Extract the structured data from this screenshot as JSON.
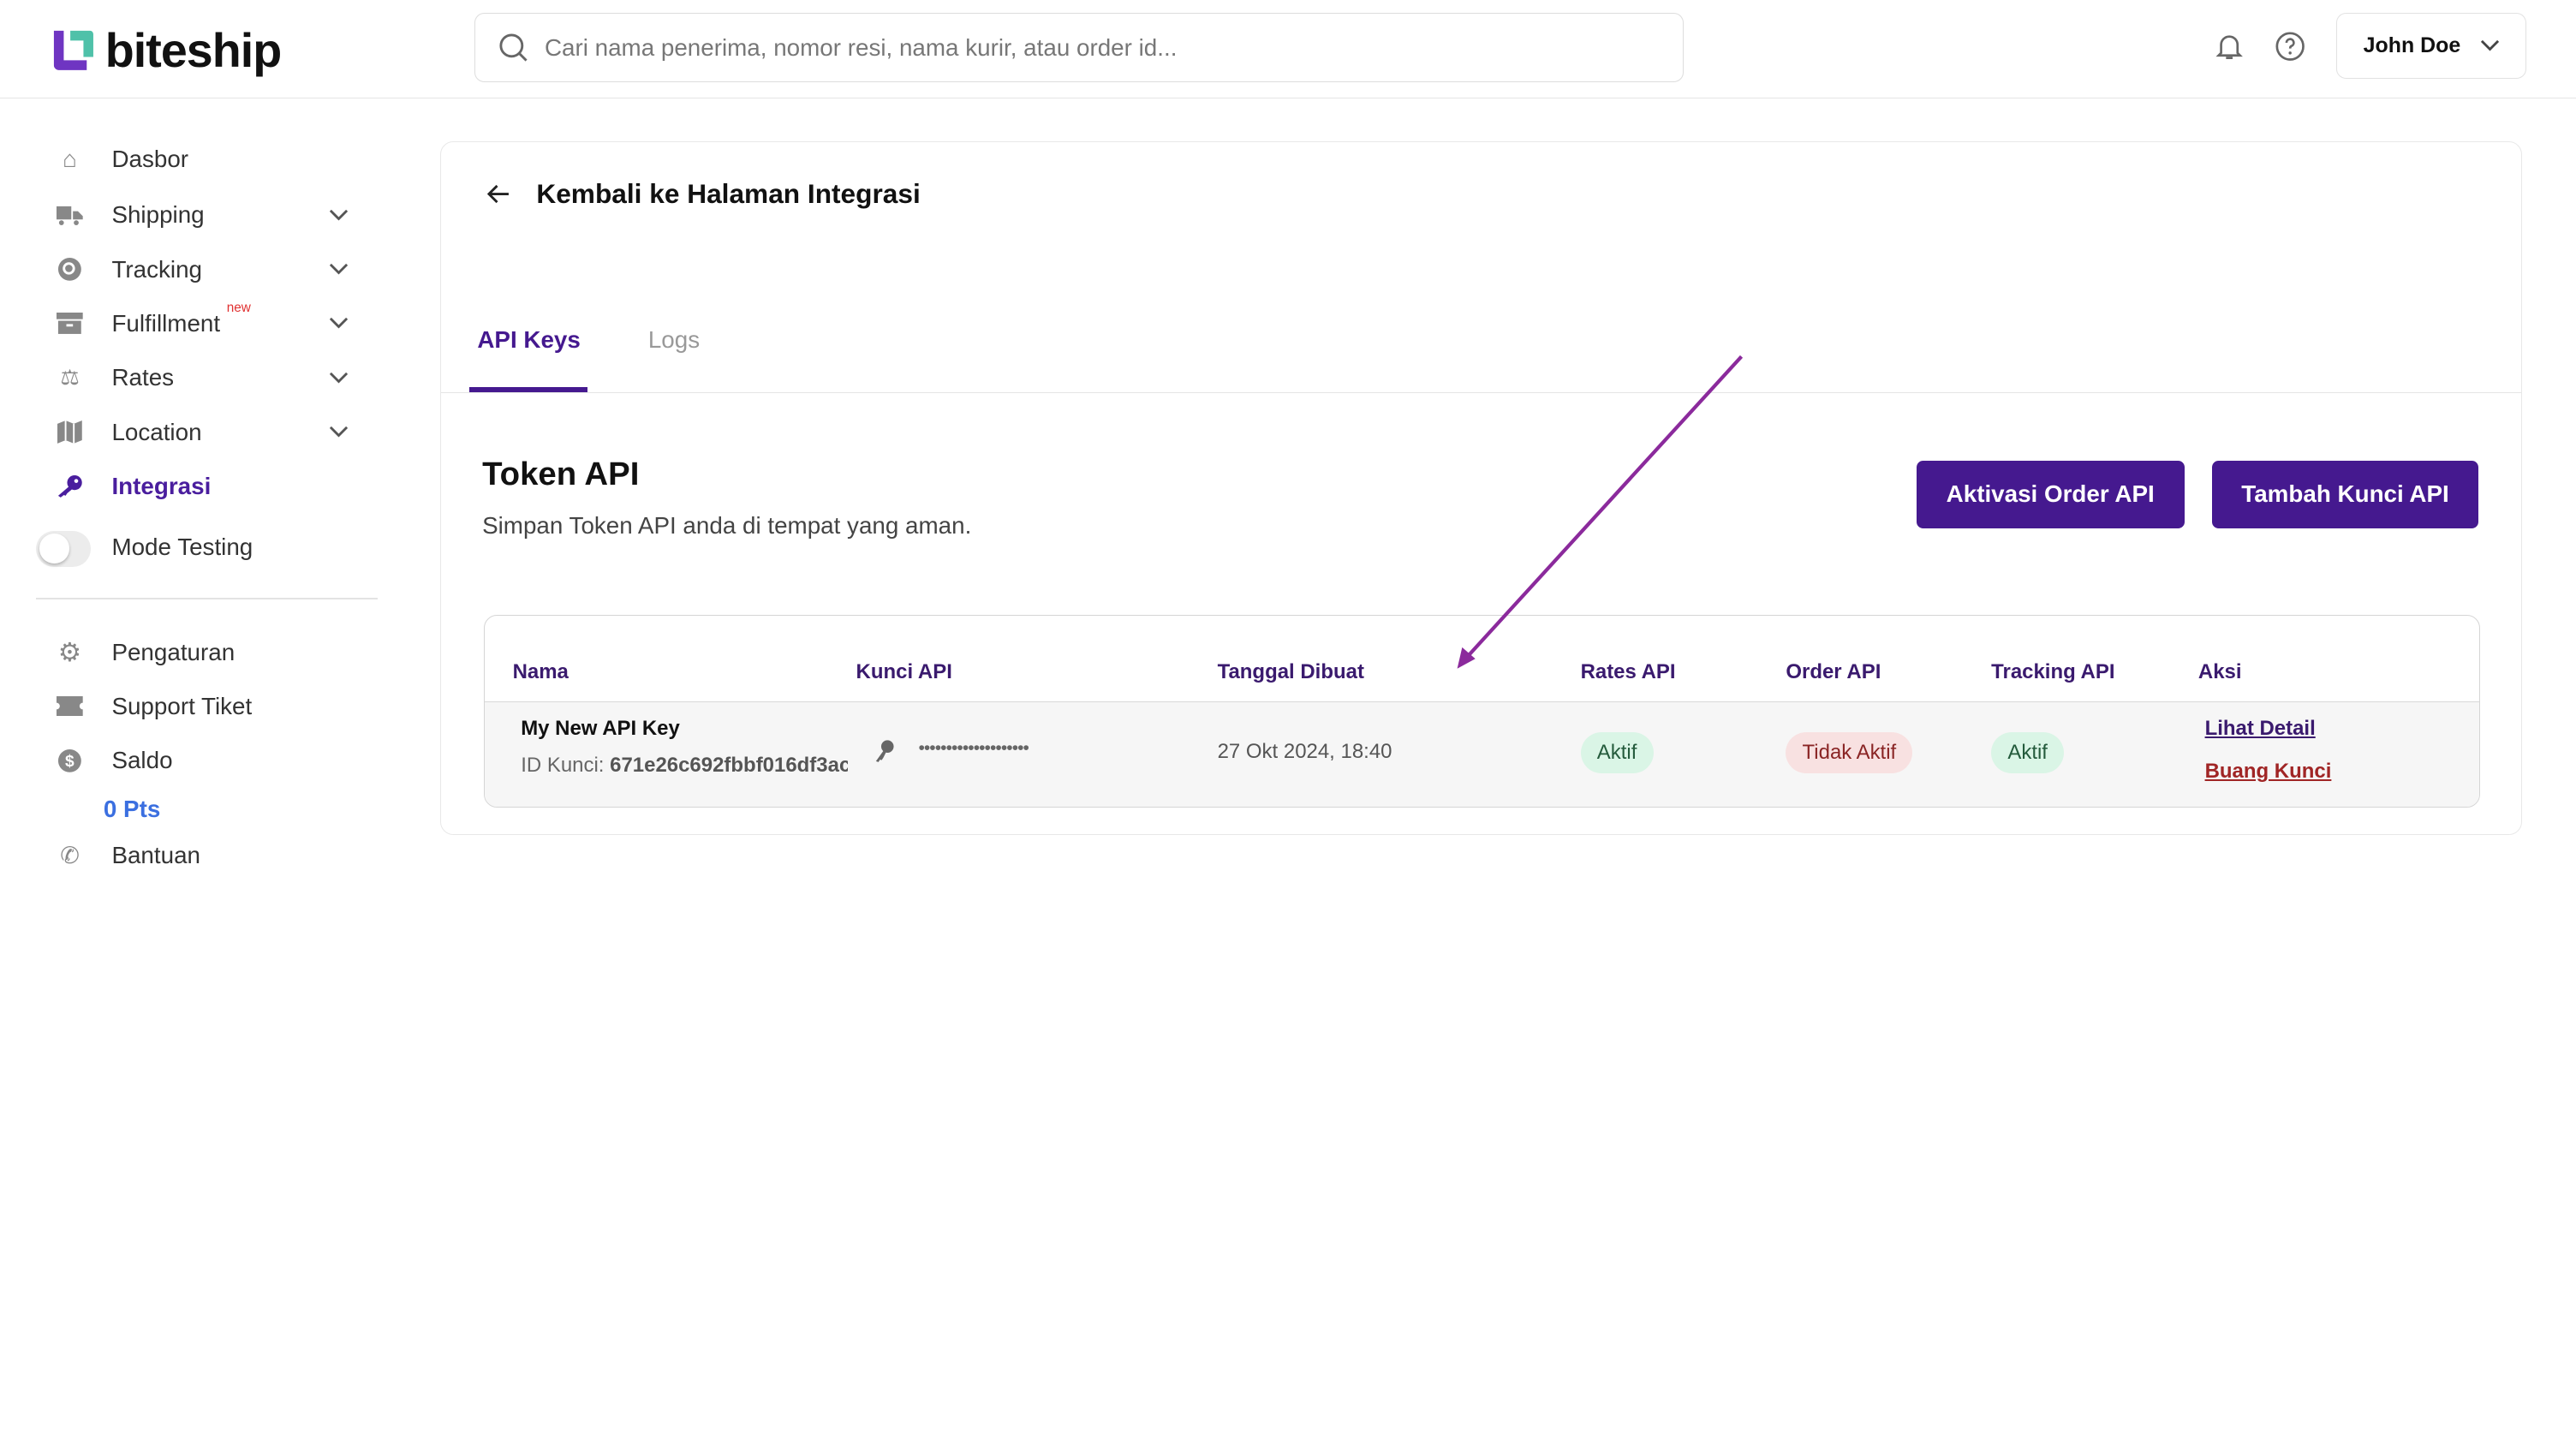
{
  "brand": {
    "name": "biteship"
  },
  "header": {
    "search_placeholder": "Cari nama penerima, nomor resi, nama kurir, atau order id...",
    "user_name": "John Doe"
  },
  "sidebar": {
    "items": [
      {
        "label": "Dasbor",
        "icon": "home-icon"
      },
      {
        "label": "Shipping",
        "icon": "truck-icon"
      },
      {
        "label": "Tracking",
        "icon": "search-location-icon"
      },
      {
        "label": "Fulfillment",
        "icon": "box-icon",
        "badge": "new"
      },
      {
        "label": "Rates",
        "icon": "scale-icon"
      },
      {
        "label": "Location",
        "icon": "map-icon"
      },
      {
        "label": "Integrasi",
        "icon": "key-icon"
      }
    ],
    "mode_testing": "Mode Testing",
    "mode_testing_on": false,
    "bottom_items": [
      {
        "label": "Pengaturan"
      },
      {
        "label": "Support Tiket"
      },
      {
        "label": "Saldo"
      },
      {
        "label": "Bantuan"
      }
    ],
    "saldo_points": "0 Pts"
  },
  "main": {
    "back_label": "Kembali ke Halaman Integrasi",
    "tabs": [
      {
        "label": "API Keys",
        "active": true
      },
      {
        "label": "Logs",
        "active": false
      }
    ],
    "section_title": "Token API",
    "section_subtitle": "Simpan Token API anda di tempat yang aman.",
    "activate_button": "Aktivasi Order API",
    "add_button": "Tambah Kunci API",
    "table": {
      "headers": [
        "Nama",
        "Kunci API",
        "Tanggal Dibuat",
        "Rates API",
        "Order API",
        "Tracking API",
        "Aksi"
      ],
      "rows": [
        {
          "name": "My New API Key",
          "id_label": "ID Kunci:",
          "id_value": "671e26c692fbbf016df3ac",
          "key_masked": "••••••••••••••••••••",
          "created": "27 Okt 2024, 18:40",
          "rates": "Aktif",
          "order": "Tidak Aktif",
          "tracking": "Aktif",
          "detail": "Lihat Detail",
          "delete": "Buang Kunci"
        }
      ]
    }
  },
  "colors": {
    "brand": "#45198f",
    "active_green": "#daf5e6",
    "inactive_red": "#f8e1e1",
    "annotation_arrow": "#8b2a9c",
    "points": "#3b6fe0"
  }
}
